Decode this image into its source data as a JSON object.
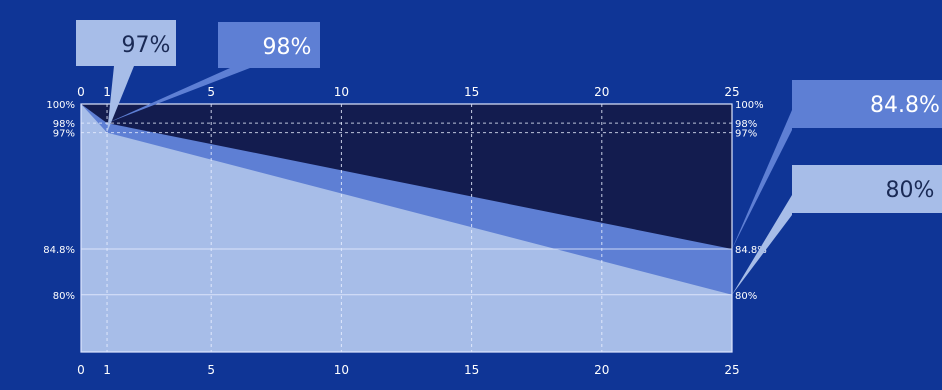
{
  "chart_data": {
    "type": "area",
    "title": "",
    "xlabel": "",
    "ylabel": "",
    "xlim": [
      0,
      25
    ],
    "ylim": [
      74,
      100
    ],
    "x_ticks": [
      0,
      1,
      5,
      10,
      15,
      20,
      25
    ],
    "x_tick_labels": [
      "0",
      "1",
      "5",
      "10",
      "15",
      "20",
      "25"
    ],
    "y_ticks": [
      100,
      98,
      97,
      84.8,
      80
    ],
    "y_tick_labels": [
      "100%",
      "98%",
      "97%",
      "84.8%",
      "80%"
    ],
    "grid": true,
    "series": [
      {
        "points": [
          [
            0,
            100
          ],
          [
            1,
            98
          ],
          [
            25,
            84.8
          ]
        ],
        "color": "#5e7fd4"
      },
      {
        "points": [
          [
            0,
            100
          ],
          [
            1,
            97
          ],
          [
            25,
            80
          ]
        ],
        "color": "#a7bde8"
      }
    ],
    "callouts": [
      {
        "text": "97%",
        "x": 1,
        "y": 97,
        "box_color": "#a7bde8",
        "text_color": "#1a2a55"
      },
      {
        "text": "98%",
        "x": 1,
        "y": 98,
        "box_color": "#5e7fd4",
        "text_color": "#ffffff"
      },
      {
        "text": "84.8%",
        "x": 25,
        "y": 84.8,
        "box_color": "#5e7fd4",
        "text_color": "#ffffff"
      },
      {
        "text": "80%",
        "x": 25,
        "y": 80,
        "box_color": "#a7bde8",
        "text_color": "#1a2a55"
      }
    ],
    "colors": {
      "background": "#0f3596",
      "plot_top": "#131c4f",
      "grid_line": "#e8eeff"
    }
  }
}
